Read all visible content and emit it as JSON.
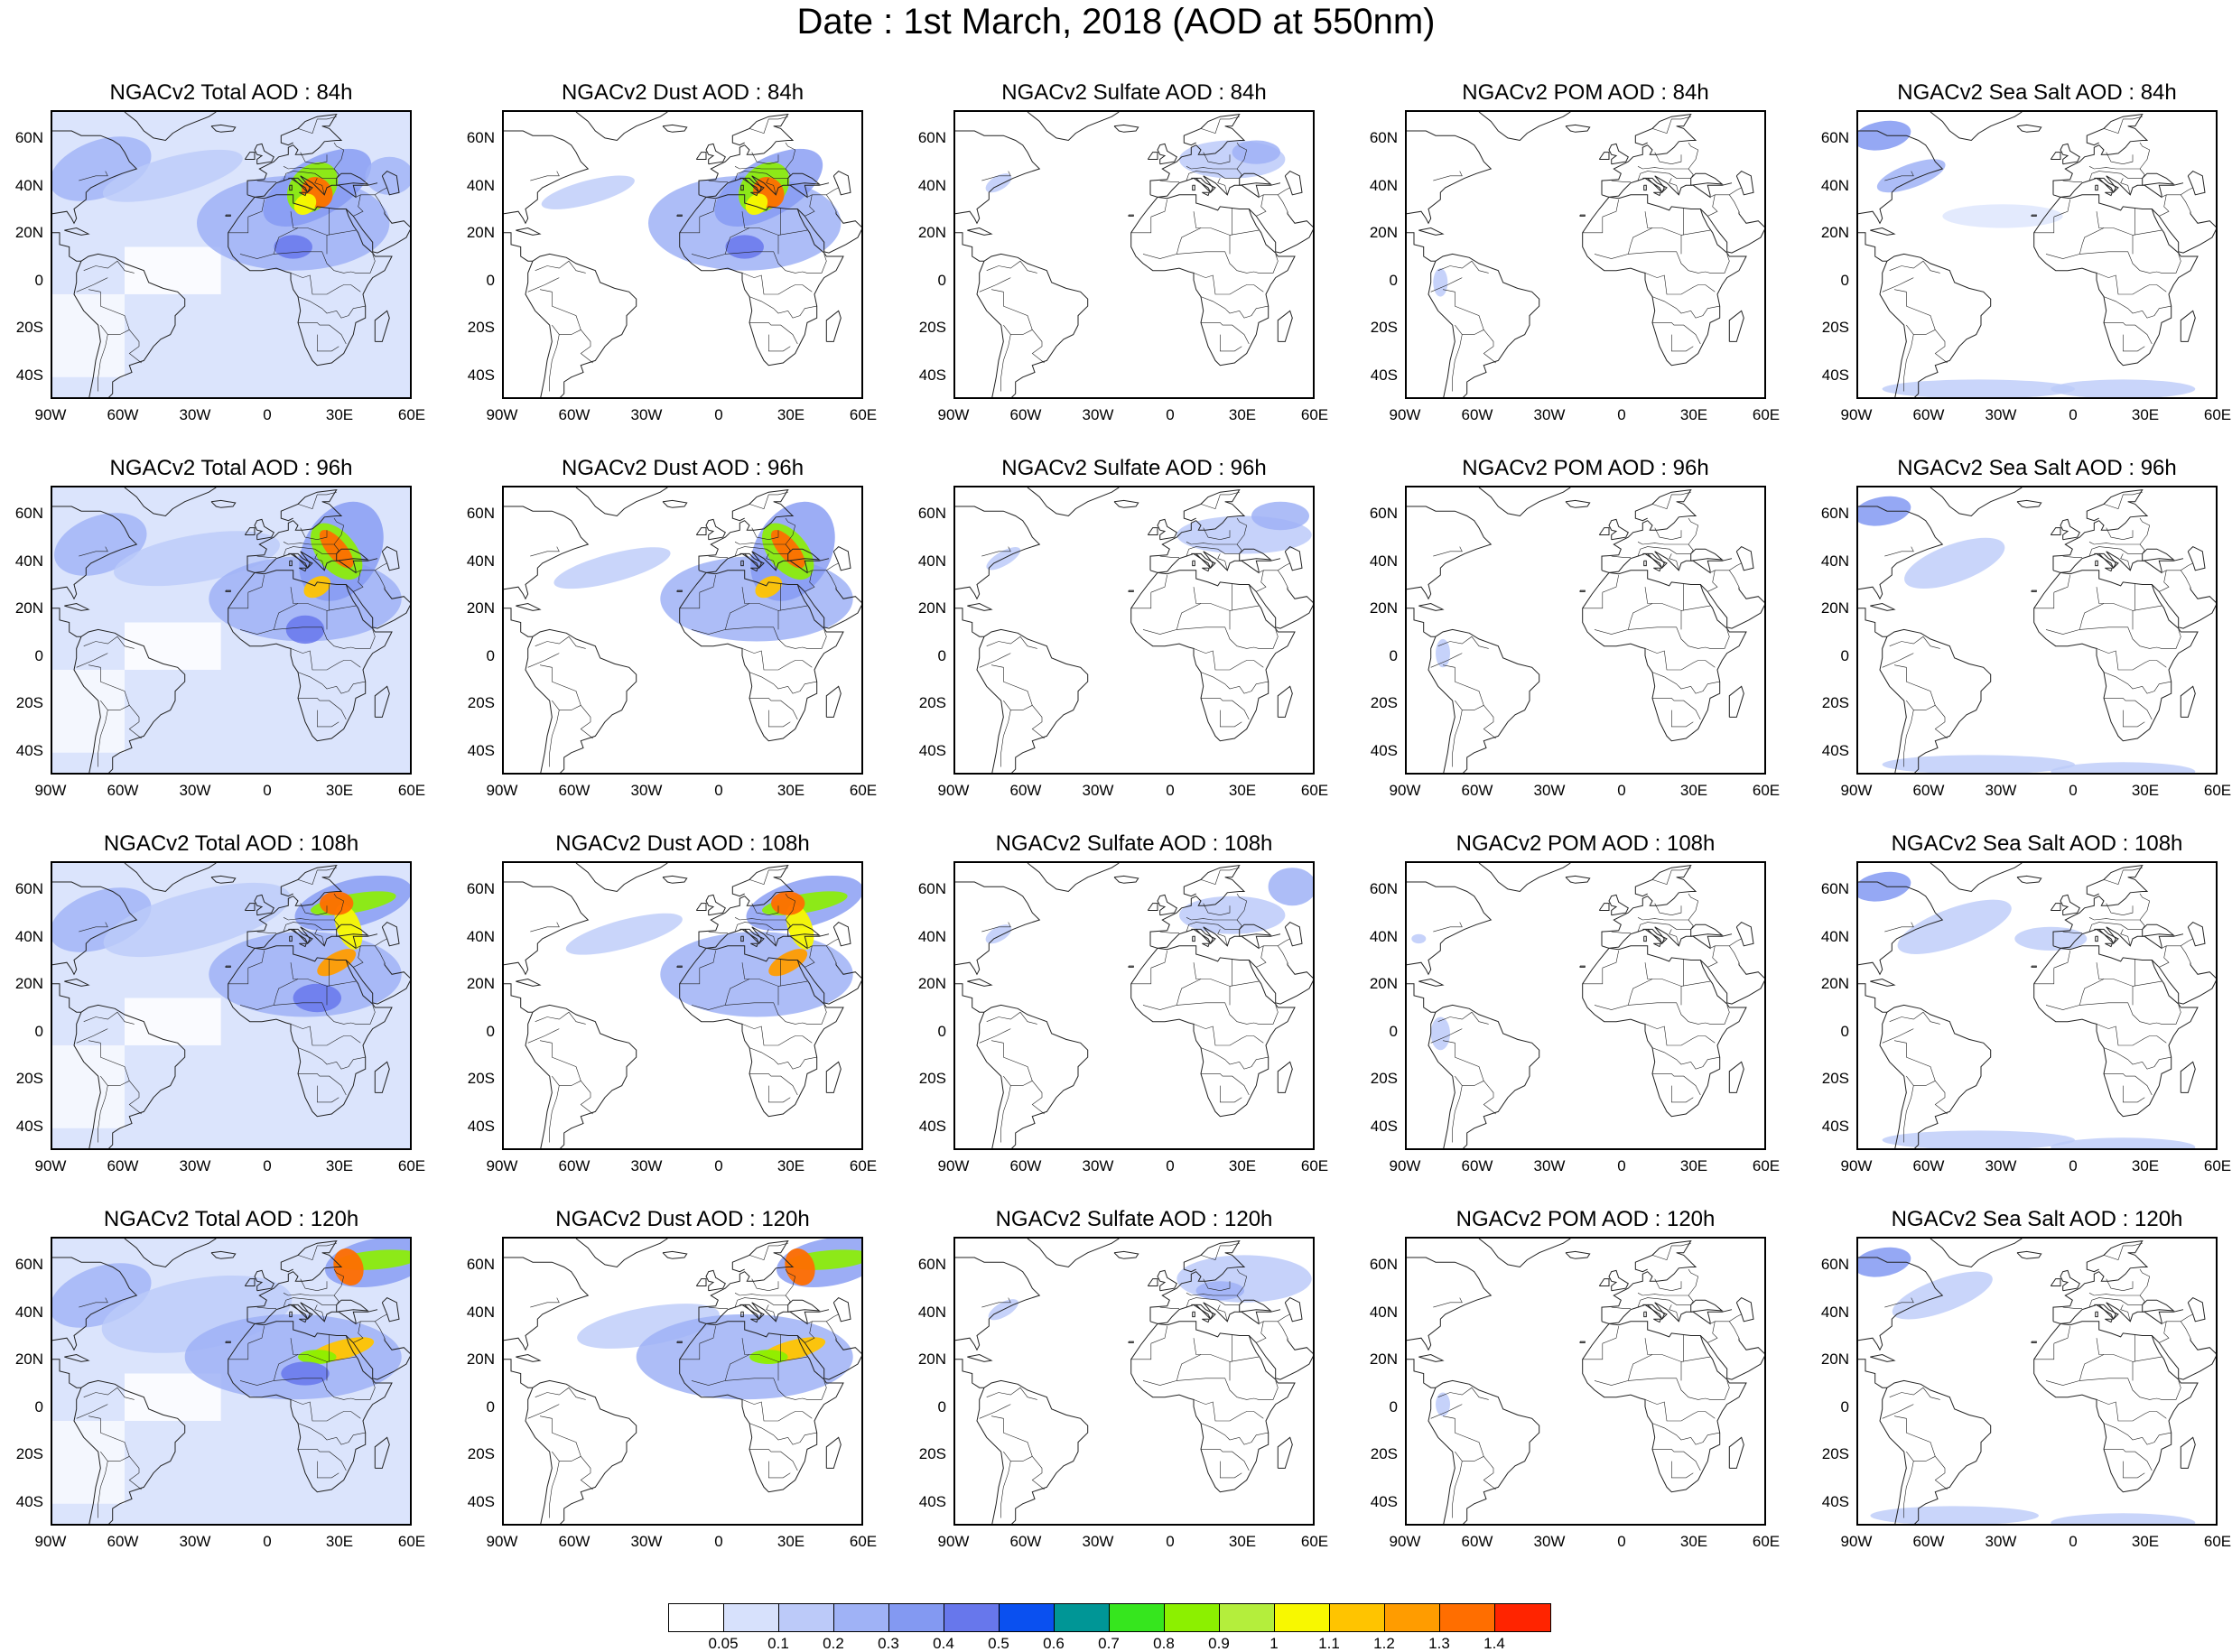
{
  "title": "Date : 1st March, 2018 (AOD at 550nm)",
  "axes": {
    "lat_ticks": [
      "60N",
      "40N",
      "20N",
      "0",
      "20S",
      "40S"
    ],
    "lon_ticks": [
      "90W",
      "60W",
      "30W",
      "0",
      "30E",
      "60E"
    ]
  },
  "rows": [
    "84h",
    "96h",
    "108h",
    "120h"
  ],
  "columns": [
    "Total",
    "Dust",
    "Sulfate",
    "POM",
    "Sea Salt"
  ],
  "panels": [
    [
      "NGACv2 Total AOD : 84h",
      "NGACv2 Dust AOD : 84h",
      "NGACv2 Sulfate AOD : 84h",
      "NGACv2 POM AOD : 84h",
      "NGACv2 Sea Salt AOD : 84h"
    ],
    [
      "NGACv2 Total AOD : 96h",
      "NGACv2 Dust AOD : 96h",
      "NGACv2 Sulfate AOD : 96h",
      "NGACv2 POM AOD : 96h",
      "NGACv2 Sea Salt AOD : 96h"
    ],
    [
      "NGACv2 Total AOD : 108h",
      "NGACv2 Dust AOD : 108h",
      "NGACv2 Sulfate AOD : 108h",
      "NGACv2 POM AOD : 108h",
      "NGACv2 Sea Salt AOD : 108h"
    ],
    [
      "NGACv2 Total AOD : 120h",
      "NGACv2 Dust AOD : 120h",
      "NGACv2 Sulfate AOD : 120h",
      "NGACv2 POM AOD : 120h",
      "NGACv2 Sea Salt  AOD : 120h"
    ]
  ],
  "colorbar": {
    "labels": [
      "0.05",
      "0.1",
      "0.2",
      "0.3",
      "0.4",
      "0.5",
      "0.6",
      "0.7",
      "0.8",
      "0.9",
      "1",
      "1.1",
      "1.2",
      "1.3",
      "1.4"
    ],
    "colors": [
      "#ffffff",
      "#d7e1fc",
      "#bccaf9",
      "#9fb2f6",
      "#8399f2",
      "#6777ec",
      "#0a50f0",
      "#009696",
      "#36e61e",
      "#8cf000",
      "#b4ee3c",
      "#f8f800",
      "#ffc400",
      "#ff9c00",
      "#ff6e00",
      "#ff2400"
    ]
  },
  "palette": {
    "outline": "#000000",
    "land_line": "#222222"
  }
}
